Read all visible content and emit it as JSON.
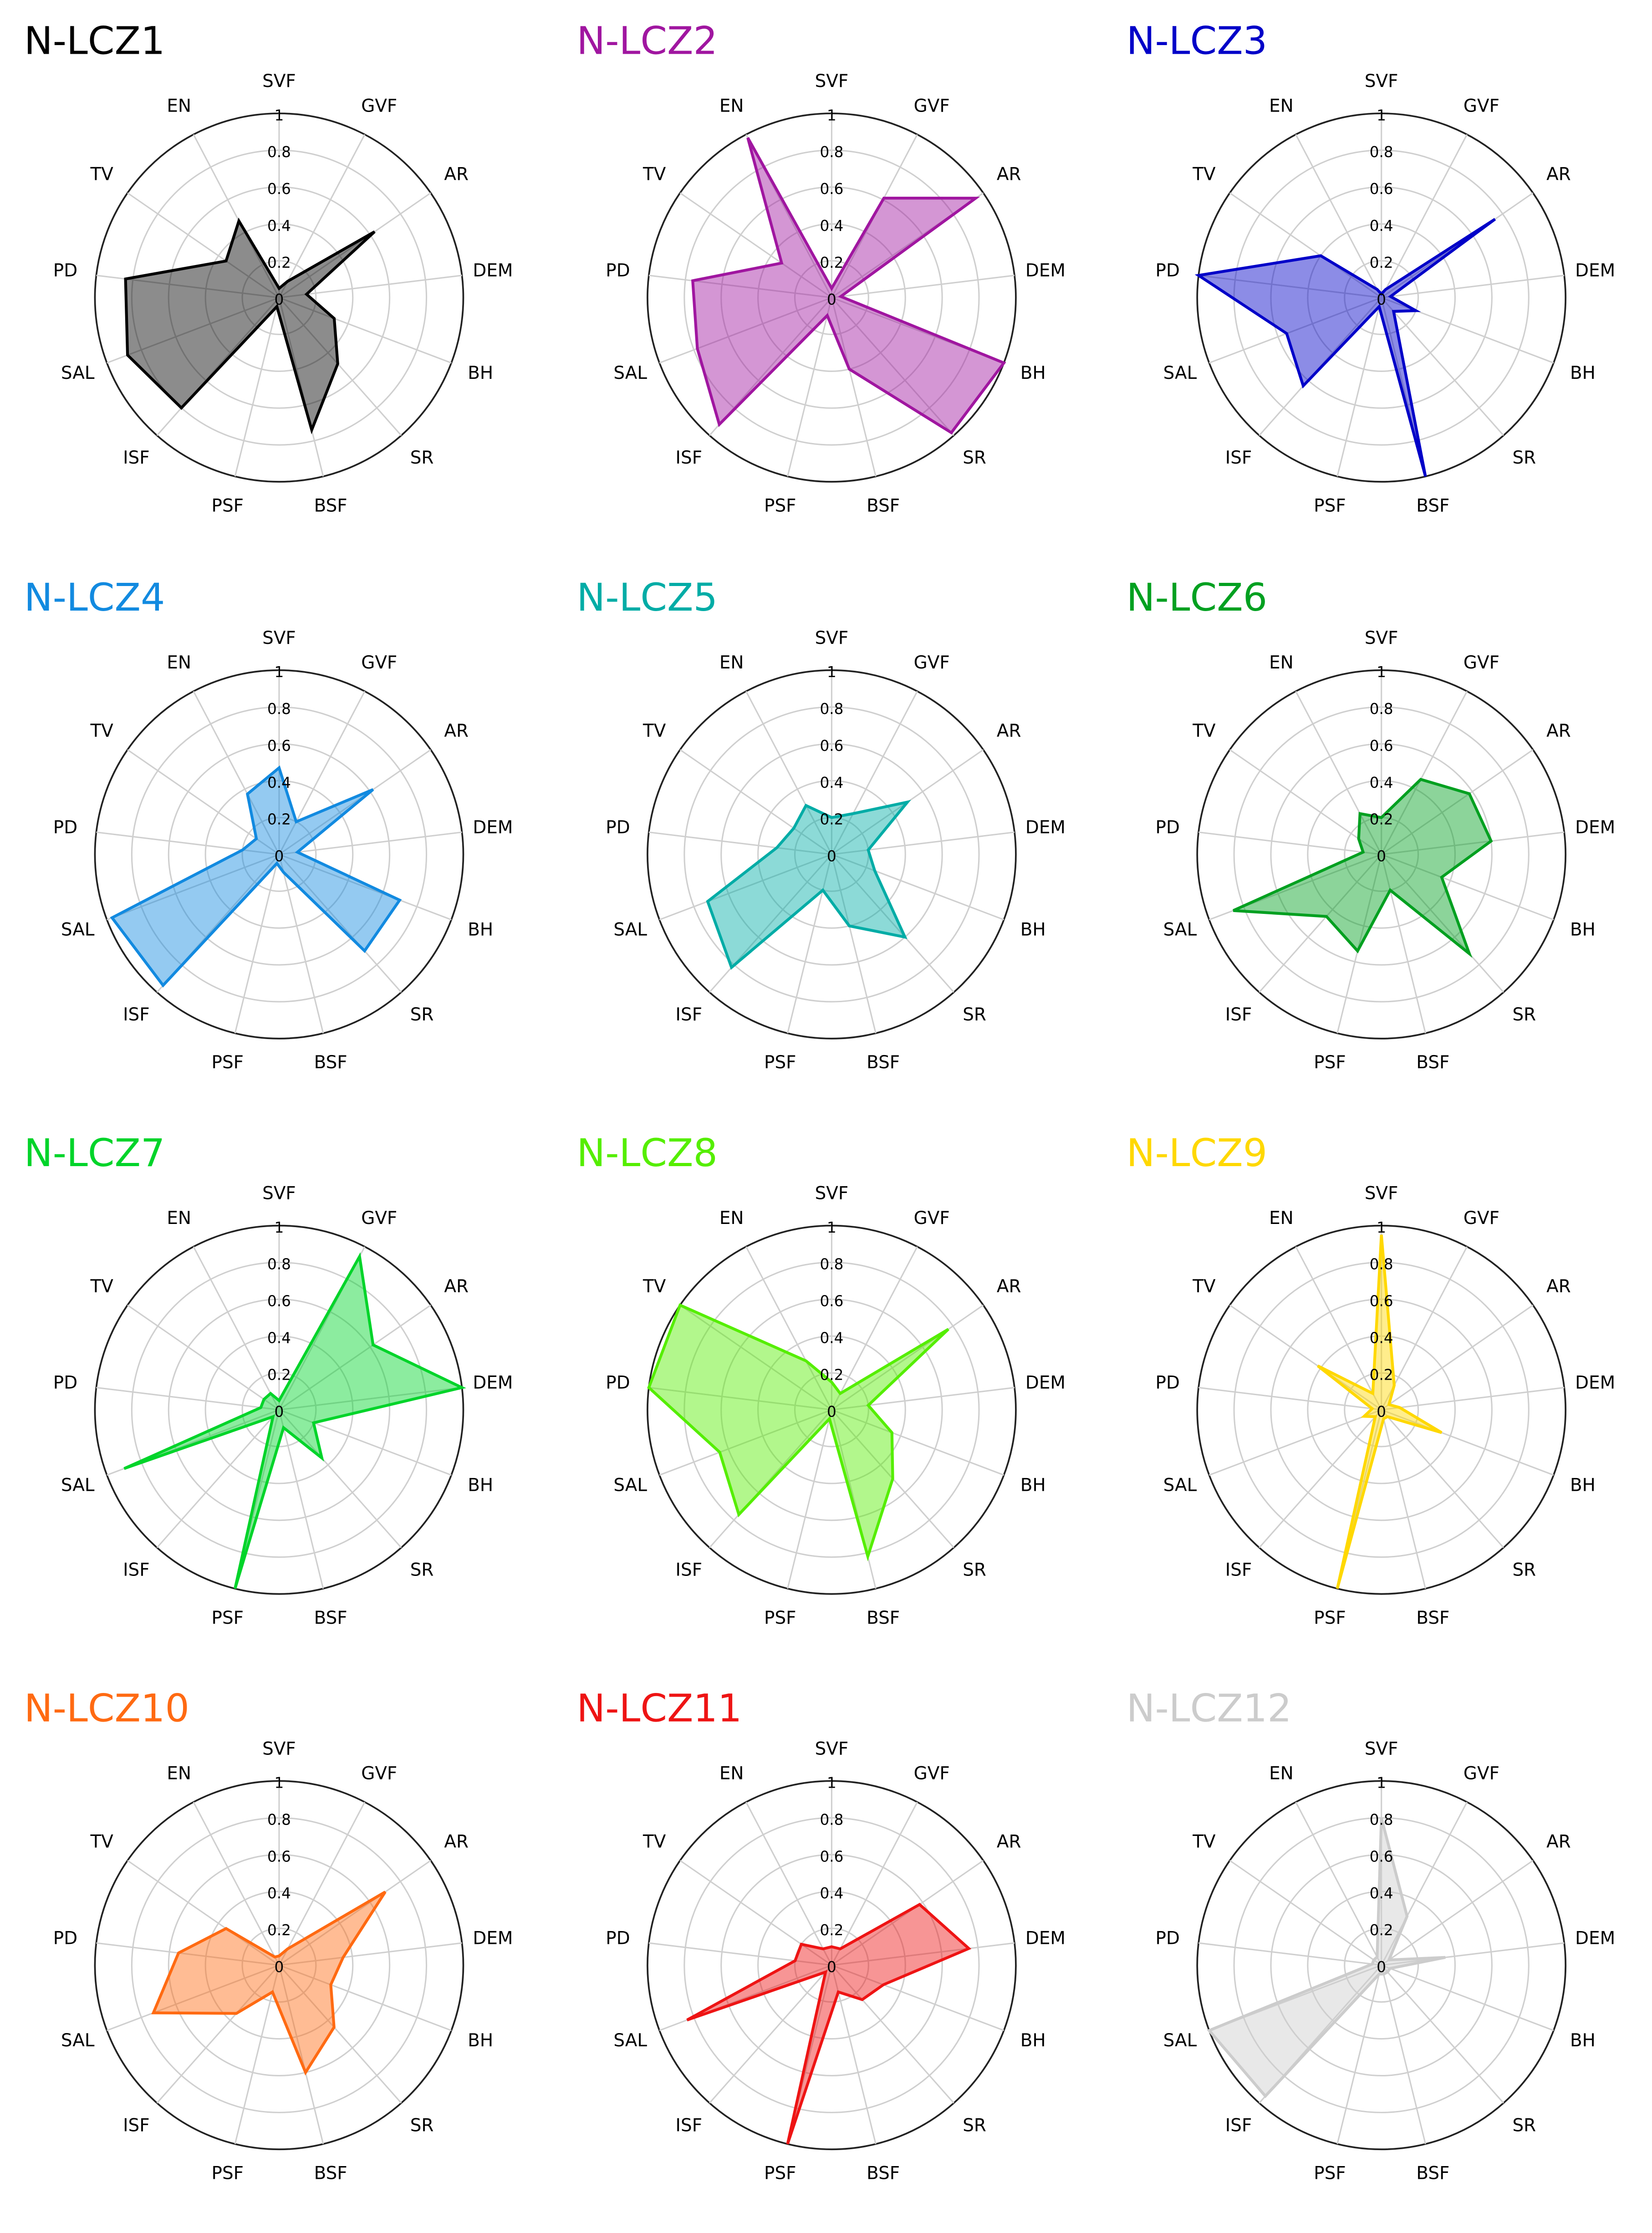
{
  "chart_data": [
    {
      "type": "radar",
      "title": "N-LCZ1",
      "color": "#000000",
      "categories": [
        "SVF",
        "GVF",
        "AR",
        "DEM",
        "BH",
        "SR",
        "BSF",
        "PSF",
        "ISF",
        "SAL",
        "PD",
        "TV",
        "EN"
      ],
      "values": [
        0.05,
        0.1,
        0.63,
        0.15,
        0.32,
        0.48,
        0.74,
        0.05,
        0.8,
        0.88,
        0.84,
        0.35,
        0.47
      ],
      "rlim": [
        0,
        1
      ],
      "rticks": [
        0,
        0.2,
        0.4,
        0.6,
        0.8,
        1
      ]
    },
    {
      "type": "radar",
      "title": "N-LCZ2",
      "color": "#a016a0",
      "categories": [
        "SVF",
        "GVF",
        "AR",
        "DEM",
        "BH",
        "SR",
        "BSF",
        "PSF",
        "ISF",
        "SAL",
        "PD",
        "TV",
        "EN"
      ],
      "values": [
        0.05,
        0.61,
        0.95,
        0.05,
        1.0,
        0.98,
        0.4,
        0.1,
        0.92,
        0.78,
        0.76,
        0.33,
        0.98
      ],
      "rlim": [
        0,
        1
      ],
      "rticks": [
        0,
        0.2,
        0.4,
        0.6,
        0.8,
        1
      ]
    },
    {
      "type": "radar",
      "title": "N-LCZ3",
      "color": "#0000c8",
      "categories": [
        "SVF",
        "GVF",
        "AR",
        "DEM",
        "BH",
        "SR",
        "BSF",
        "PSF",
        "ISF",
        "SAL",
        "PD",
        "TV",
        "EN"
      ],
      "values": [
        0.02,
        0.05,
        0.75,
        0.05,
        0.2,
        0.1,
        1.0,
        0.05,
        0.64,
        0.55,
        1.0,
        0.4,
        0.05
      ],
      "rlim": [
        0,
        1
      ],
      "rticks": [
        0,
        0.2,
        0.4,
        0.6,
        0.8,
        1
      ]
    },
    {
      "type": "radar",
      "title": "N-LCZ4",
      "color": "#128ae0",
      "categories": [
        "SVF",
        "GVF",
        "AR",
        "DEM",
        "BH",
        "SR",
        "BSF",
        "PSF",
        "ISF",
        "SAL",
        "PD",
        "TV",
        "EN"
      ],
      "values": [
        0.47,
        0.2,
        0.62,
        0.1,
        0.7,
        0.7,
        0.1,
        0.05,
        0.95,
        0.97,
        0.2,
        0.15,
        0.37
      ],
      "rlim": [
        0,
        1
      ],
      "rticks": [
        0,
        0.2,
        0.4,
        0.6,
        0.8,
        1
      ]
    },
    {
      "type": "radar",
      "title": "N-LCZ5",
      "color": "#00aca6",
      "categories": [
        "SVF",
        "GVF",
        "AR",
        "DEM",
        "BH",
        "SR",
        "BSF",
        "PSF",
        "ISF",
        "SAL",
        "PD",
        "TV",
        "EN"
      ],
      "values": [
        0.2,
        0.25,
        0.5,
        0.2,
        0.25,
        0.6,
        0.4,
        0.2,
        0.82,
        0.72,
        0.3,
        0.25,
        0.3
      ],
      "rlim": [
        0,
        1
      ],
      "rticks": [
        0,
        0.2,
        0.4,
        0.6,
        0.8,
        1
      ]
    },
    {
      "type": "radar",
      "title": "N-LCZ6",
      "color": "#00a020",
      "categories": [
        "SVF",
        "GVF",
        "AR",
        "DEM",
        "BH",
        "SR",
        "BSF",
        "PSF",
        "ISF",
        "SAL",
        "PD",
        "TV",
        "EN"
      ],
      "values": [
        0.2,
        0.46,
        0.58,
        0.6,
        0.35,
        0.72,
        0.2,
        0.54,
        0.45,
        0.86,
        0.1,
        0.15,
        0.25
      ],
      "rlim": [
        0,
        1
      ],
      "rticks": [
        0,
        0.2,
        0.4,
        0.6,
        0.8,
        1
      ]
    },
    {
      "type": "radar",
      "title": "N-LCZ7",
      "color": "#00d42a",
      "categories": [
        "SVF",
        "GVF",
        "AR",
        "DEM",
        "BH",
        "SR",
        "BSF",
        "PSF",
        "ISF",
        "SAL",
        "PD",
        "TV",
        "EN"
      ],
      "values": [
        0.05,
        0.94,
        0.62,
        1.0,
        0.2,
        0.35,
        0.1,
        1.0,
        0.05,
        0.9,
        0.1,
        0.1,
        0.1
      ],
      "rlim": [
        0,
        1
      ],
      "rticks": [
        0,
        0.2,
        0.4,
        0.6,
        0.8,
        1
      ]
    },
    {
      "type": "radar",
      "title": "N-LCZ8",
      "color": "#55ee00",
      "categories": [
        "SVF",
        "GVF",
        "AR",
        "DEM",
        "BH",
        "SR",
        "BSF",
        "PSF",
        "ISF",
        "SAL",
        "PD",
        "TV",
        "EN"
      ],
      "values": [
        0.15,
        0.1,
        0.77,
        0.2,
        0.35,
        0.5,
        0.82,
        0.05,
        0.76,
        0.65,
        1.0,
        1.0,
        0.3
      ],
      "rlim": [
        0,
        1
      ],
      "rticks": [
        0,
        0.2,
        0.4,
        0.6,
        0.8,
        1
      ]
    },
    {
      "type": "radar",
      "title": "N-LCZ9",
      "color": "#ffd800",
      "categories": [
        "SVF",
        "GVF",
        "AR",
        "DEM",
        "BH",
        "SR",
        "BSF",
        "PSF",
        "ISF",
        "SAL",
        "PD",
        "TV",
        "EN"
      ],
      "values": [
        0.95,
        0.15,
        0.05,
        0.1,
        0.35,
        0.05,
        0.05,
        1.0,
        0.05,
        0.1,
        0.05,
        0.42,
        0.1
      ],
      "rlim": [
        0,
        1
      ],
      "rticks": [
        0,
        0.2,
        0.4,
        0.6,
        0.8,
        1
      ]
    },
    {
      "type": "radar",
      "title": "N-LCZ10",
      "color": "#ff6a12",
      "categories": [
        "SVF",
        "GVF",
        "AR",
        "DEM",
        "BH",
        "SR",
        "BSF",
        "PSF",
        "ISF",
        "SAL",
        "PD",
        "TV",
        "EN"
      ],
      "values": [
        0.05,
        0.1,
        0.7,
        0.35,
        0.3,
        0.45,
        0.6,
        0.15,
        0.35,
        0.73,
        0.55,
        0.35,
        0.05
      ],
      "rlim": [
        0,
        1
      ],
      "rticks": [
        0,
        0.2,
        0.4,
        0.6,
        0.8,
        1
      ]
    },
    {
      "type": "radar",
      "title": "N-LCZ11",
      "color": "#ee1414",
      "categories": [
        "SVF",
        "GVF",
        "AR",
        "DEM",
        "BH",
        "SR",
        "BSF",
        "PSF",
        "ISF",
        "SAL",
        "PD",
        "TV",
        "EN"
      ],
      "values": [
        0.1,
        0.1,
        0.58,
        0.75,
        0.3,
        0.25,
        0.15,
        1.0,
        0.05,
        0.84,
        0.2,
        0.2,
        0.1
      ],
      "rlim": [
        0,
        1
      ],
      "rticks": [
        0,
        0.2,
        0.4,
        0.6,
        0.8,
        1
      ]
    },
    {
      "type": "radar",
      "title": "N-LCZ12",
      "color": "#cccccc",
      "categories": [
        "SVF",
        "GVF",
        "AR",
        "DEM",
        "BH",
        "SR",
        "BSF",
        "PSF",
        "ISF",
        "SAL",
        "PD",
        "TV",
        "EN"
      ],
      "values": [
        0.8,
        0.3,
        0.05,
        0.35,
        0.05,
        0.05,
        0.05,
        0.05,
        0.95,
        1.0,
        0.05,
        0.05,
        0.05
      ],
      "rlim": [
        0,
        1
      ],
      "rticks": [
        0,
        0.2,
        0.4,
        0.6,
        0.8,
        1
      ]
    }
  ]
}
